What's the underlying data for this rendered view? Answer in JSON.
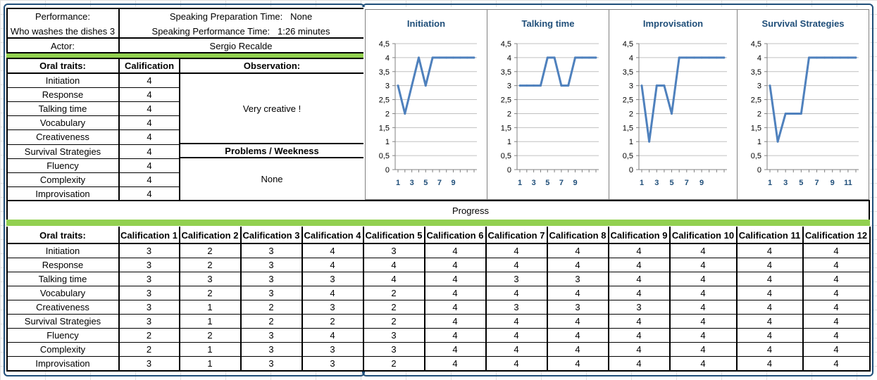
{
  "header": {
    "performance_label": "Performance:",
    "performance_value": "Who washes the dishes 3",
    "prep_time_label": "Speaking Preparation Time:",
    "prep_time_value": "None",
    "perf_time_label": "Speaking Performance Time:",
    "perf_time_value": "1:26 minutes",
    "actor_label": "Actor:",
    "actor_value": "Sergio Recalde"
  },
  "summary": {
    "col_traits": "Oral traits:",
    "col_calification": "Calification",
    "col_observation": "Observation:",
    "observation_value": "Very creative !",
    "problems_label": "Problems / Weekness",
    "problems_value": "None",
    "rows": [
      {
        "trait": "Initiation",
        "score": "4"
      },
      {
        "trait": "Response",
        "score": "4"
      },
      {
        "trait": "Talking time",
        "score": "4"
      },
      {
        "trait": "Vocabulary",
        "score": "4"
      },
      {
        "trait": "Creativeness",
        "score": "4"
      },
      {
        "trait": "Survival Strategies",
        "score": "4"
      },
      {
        "trait": "Fluency",
        "score": "4"
      },
      {
        "trait": "Complexity",
        "score": "4"
      },
      {
        "trait": "Improvisation",
        "score": "4"
      }
    ]
  },
  "progress_label": "Progress",
  "history": {
    "col_traits": "Oral traits:",
    "columns": [
      "Calification 1",
      "Calification 2",
      "Calification 3",
      "Calification 4",
      "Calification 5",
      "Calification 6",
      "Calification 7",
      "Calification 8",
      "Calification 9",
      "Calification 10",
      "Calification 11",
      "Calification 12"
    ],
    "rows": [
      {
        "trait": "Initiation",
        "values": [
          "3",
          "2",
          "3",
          "4",
          "3",
          "4",
          "4",
          "4",
          "4",
          "4",
          "4",
          "4"
        ]
      },
      {
        "trait": "Response",
        "values": [
          "3",
          "2",
          "3",
          "4",
          "4",
          "4",
          "4",
          "4",
          "4",
          "4",
          "4",
          "4"
        ]
      },
      {
        "trait": "Talking time",
        "values": [
          "3",
          "3",
          "3",
          "3",
          "4",
          "4",
          "3",
          "3",
          "4",
          "4",
          "4",
          "4"
        ]
      },
      {
        "trait": "Vocabulary",
        "values": [
          "3",
          "2",
          "3",
          "4",
          "2",
          "4",
          "4",
          "4",
          "4",
          "4",
          "4",
          "4"
        ]
      },
      {
        "trait": "Creativeness",
        "values": [
          "3",
          "1",
          "2",
          "3",
          "2",
          "4",
          "3",
          "3",
          "3",
          "4",
          "4",
          "4"
        ]
      },
      {
        "trait": "Survival Strategies",
        "values": [
          "3",
          "1",
          "2",
          "2",
          "2",
          "4",
          "4",
          "4",
          "4",
          "4",
          "4",
          "4"
        ]
      },
      {
        "trait": "Fluency",
        "values": [
          "2",
          "2",
          "3",
          "4",
          "3",
          "4",
          "4",
          "4",
          "4",
          "4",
          "4",
          "4"
        ]
      },
      {
        "trait": "Complexity",
        "values": [
          "2",
          "1",
          "3",
          "3",
          "3",
          "4",
          "4",
          "4",
          "4",
          "4",
          "4",
          "4"
        ]
      },
      {
        "trait": "Improvisation",
        "values": [
          "3",
          "1",
          "3",
          "3",
          "2",
          "4",
          "4",
          "4",
          "4",
          "4",
          "4",
          "4"
        ]
      }
    ]
  },
  "colors": {
    "line": "#4f81bd",
    "green_band": "#92d050",
    "panel_border": "#1f4e79"
  },
  "chart_data": [
    {
      "type": "line",
      "title": "Initiation",
      "x": [
        1,
        2,
        3,
        4,
        5,
        6,
        7,
        8,
        9,
        10,
        11,
        12
      ],
      "y": [
        3,
        2,
        3,
        4,
        3,
        4,
        4,
        4,
        4,
        4,
        4,
        4
      ],
      "ylim": [
        0,
        4.5
      ],
      "yticks": [
        "0",
        "0,5",
        "1",
        "1,5",
        "2",
        "2,5",
        "3",
        "3,5",
        "4",
        "4,5"
      ],
      "xticks": [
        "1",
        "3",
        "5",
        "7",
        "9"
      ],
      "grid": true
    },
    {
      "type": "line",
      "title": "Talking time",
      "x": [
        1,
        2,
        3,
        4,
        5,
        6,
        7,
        8,
        9,
        10,
        11,
        12
      ],
      "y": [
        3,
        3,
        3,
        3,
        4,
        4,
        3,
        3,
        4,
        4,
        4,
        4
      ],
      "ylim": [
        0,
        4.5
      ],
      "yticks": [
        "0",
        "0,5",
        "1",
        "1,5",
        "2",
        "2,5",
        "3",
        "3,5",
        "4",
        "4,5"
      ],
      "xticks": [
        "1",
        "3",
        "5",
        "7",
        "9"
      ],
      "grid": true
    },
    {
      "type": "line",
      "title": "Improvisation",
      "x": [
        1,
        2,
        3,
        4,
        5,
        6,
        7,
        8,
        9,
        10,
        11,
        12
      ],
      "y": [
        3,
        1,
        3,
        3,
        2,
        4,
        4,
        4,
        4,
        4,
        4,
        4
      ],
      "ylim": [
        0,
        4.5
      ],
      "yticks": [
        "0",
        "0,5",
        "1",
        "1,5",
        "2",
        "2,5",
        "3",
        "3,5",
        "4",
        "4,5"
      ],
      "xticks": [
        "1",
        "3",
        "5",
        "7",
        "9"
      ],
      "grid": true
    },
    {
      "type": "line",
      "title": "Survival Strategies",
      "x": [
        1,
        2,
        3,
        4,
        5,
        6,
        7,
        8,
        9,
        10,
        11,
        12
      ],
      "y": [
        3,
        1,
        2,
        2,
        2,
        4,
        4,
        4,
        4,
        4,
        4,
        4
      ],
      "ylim": [
        0,
        4.5
      ],
      "yticks": [
        "0",
        "0,5",
        "1",
        "1,5",
        "2",
        "2,5",
        "3",
        "3,5",
        "4",
        "4,5"
      ],
      "xticks": [
        "1",
        "3",
        "5",
        "7",
        "9",
        "11"
      ],
      "grid": true
    }
  ]
}
